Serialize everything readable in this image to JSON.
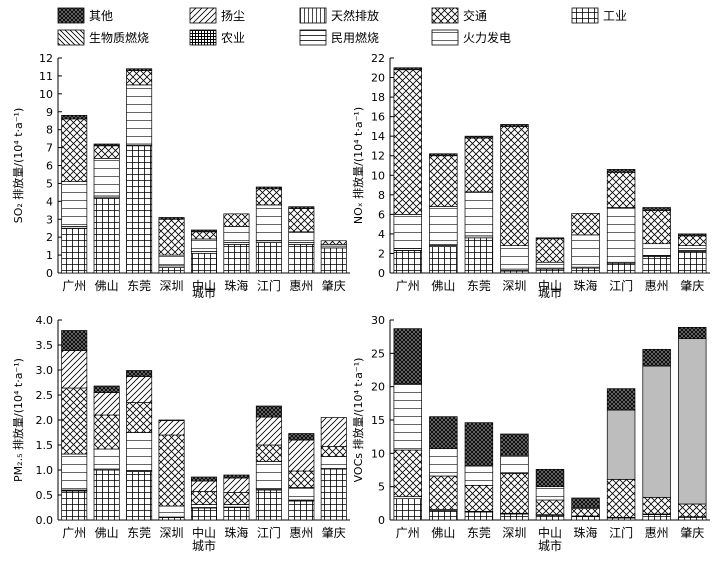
{
  "legend": [
    {
      "key": "qita",
      "label": "其他",
      "pattern": "p-qita"
    },
    {
      "key": "yangchen",
      "label": "扬尘",
      "pattern": "p-yangchen"
    },
    {
      "key": "tianran",
      "label": "天然排放",
      "pattern": "p-tianran"
    },
    {
      "key": "jiaotong",
      "label": "交通",
      "pattern": "p-jiaotong"
    },
    {
      "key": "gongye",
      "label": "工业",
      "pattern": "p-gongye"
    },
    {
      "key": "shengwu",
      "label": "生物质燃烧",
      "pattern": "p-shengwu"
    },
    {
      "key": "nongye",
      "label": "农业",
      "pattern": "p-nongye"
    },
    {
      "key": "minyong",
      "label": "民用燃烧",
      "pattern": "p-minyong"
    },
    {
      "key": "huoli",
      "label": "火力发电",
      "pattern": "p-huoli"
    }
  ],
  "chart_data": [
    {
      "type": "bar",
      "stacked": true,
      "title": "",
      "ylabel": "SO₂ 排放量/(10⁴ t·a⁻¹)",
      "xlabel": "城市",
      "ylim": [
        0,
        12
      ],
      "yticks": [
        0,
        1,
        2,
        3,
        4,
        5,
        6,
        7,
        8,
        9,
        10,
        11,
        12
      ],
      "categories": [
        "广州",
        "佛山",
        "东莞",
        "深圳",
        "中山",
        "珠海",
        "江门",
        "惠州",
        "肇庆"
      ],
      "series": [
        {
          "name": "工业",
          "values": [
            2.5,
            4.2,
            7.1,
            0.3,
            1.1,
            1.6,
            1.7,
            1.6,
            1.4
          ]
        },
        {
          "name": "民用燃烧",
          "values": [
            0.1,
            0.1,
            0.1,
            0.1,
            0.1,
            0.1,
            0.1,
            0.1,
            0.1
          ]
        },
        {
          "name": "火力发电",
          "values": [
            2.5,
            2.1,
            3.3,
            0.6,
            0.7,
            0.9,
            2.0,
            0.6,
            0.1
          ]
        },
        {
          "name": "交通",
          "values": [
            3.5,
            0.7,
            0.8,
            2.0,
            0.4,
            0.7,
            0.9,
            1.3,
            0.2
          ]
        },
        {
          "name": "其他",
          "values": [
            0.2,
            0.1,
            0.1,
            0.1,
            0.1,
            0.0,
            0.1,
            0.1,
            0.0
          ]
        }
      ]
    },
    {
      "type": "bar",
      "stacked": true,
      "title": "",
      "ylabel": "NOₓ 排放量/(10⁴ t·a⁻¹)",
      "xlabel": "城市",
      "ylim": [
        0,
        22
      ],
      "yticks": [
        0,
        2,
        4,
        6,
        8,
        10,
        12,
        14,
        16,
        18,
        20,
        22
      ],
      "categories": [
        "广州",
        "佛山",
        "东莞",
        "深圳",
        "中山",
        "珠海",
        "江门",
        "惠州",
        "肇庆"
      ],
      "series": [
        {
          "name": "工业",
          "values": [
            2.3,
            2.7,
            3.6,
            0.2,
            0.4,
            0.5,
            1.0,
            1.7,
            2.2
          ]
        },
        {
          "name": "民用燃烧",
          "values": [
            0.2,
            0.2,
            0.2,
            0.2,
            0.1,
            0.1,
            0.1,
            0.1,
            0.1
          ]
        },
        {
          "name": "火力发电",
          "values": [
            3.5,
            3.9,
            4.5,
            2.4,
            0.6,
            3.3,
            5.6,
            1.2,
            0.5
          ]
        },
        {
          "name": "交通",
          "values": [
            14.8,
            5.2,
            5.5,
            12.2,
            2.4,
            2.2,
            3.6,
            3.4,
            1.0
          ]
        },
        {
          "name": "其他",
          "values": [
            0.2,
            0.2,
            0.2,
            0.2,
            0.1,
            0.0,
            0.3,
            0.3,
            0.2
          ]
        }
      ]
    },
    {
      "type": "bar",
      "stacked": true,
      "title": "",
      "ylabel": "PM₂.₅ 排放量/(10⁴ t·a⁻¹)",
      "xlabel": "城市",
      "ylim": [
        0,
        4.0
      ],
      "yticks": [
        0,
        0.5,
        1.0,
        1.5,
        2.0,
        2.5,
        3.0,
        3.5,
        4.0
      ],
      "categories": [
        "广州",
        "佛山",
        "东莞",
        "深圳",
        "中山",
        "珠海",
        "江门",
        "惠州",
        "肇庆"
      ],
      "series": [
        {
          "name": "工业",
          "values": [
            0.58,
            1.0,
            0.97,
            0.05,
            0.24,
            0.25,
            0.6,
            0.38,
            1.02
          ]
        },
        {
          "name": "民用燃烧",
          "values": [
            0.02,
            0.02,
            0.02,
            0.01,
            0.01,
            0.01,
            0.02,
            0.02,
            0.01
          ]
        },
        {
          "name": "火力发电",
          "values": [
            0.72,
            0.4,
            0.76,
            0.22,
            0.06,
            0.05,
            0.55,
            0.25,
            0.24
          ]
        },
        {
          "name": "交通",
          "values": [
            1.32,
            0.68,
            0.6,
            1.42,
            0.26,
            0.24,
            0.33,
            0.33,
            0.2
          ]
        },
        {
          "name": "生物质燃烧",
          "values": [
            0.0,
            0.0,
            0.0,
            0.0,
            0.0,
            0.0,
            0.0,
            0.0,
            0.0
          ]
        },
        {
          "name": "扬尘",
          "values": [
            0.75,
            0.45,
            0.52,
            0.29,
            0.21,
            0.29,
            0.56,
            0.62,
            0.58
          ]
        },
        {
          "name": "其他",
          "values": [
            0.4,
            0.13,
            0.12,
            0.01,
            0.08,
            0.06,
            0.22,
            0.13,
            0.0
          ]
        }
      ]
    },
    {
      "type": "bar",
      "stacked": true,
      "title": "",
      "ylabel": "VOCs 排放量/(10⁴ t·a⁻¹)",
      "xlabel": "城市",
      "ylim": [
        0,
        30
      ],
      "yticks": [
        0,
        5,
        10,
        15,
        20,
        25,
        30
      ],
      "categories": [
        "广州",
        "佛山",
        "东莞",
        "深圳",
        "中山",
        "珠海",
        "江门",
        "惠州",
        "肇庆"
      ],
      "series": [
        {
          "name": "工业",
          "values": [
            3.2,
            1.3,
            1.2,
            0.9,
            0.7,
            0.5,
            0.3,
            0.8,
            0.4
          ]
        },
        {
          "name": "民用燃烧",
          "values": [
            0.3,
            0.3,
            0.1,
            0.1,
            0.1,
            0.1,
            0.1,
            0.1,
            0.1
          ]
        },
        {
          "name": "交通",
          "values": [
            7.0,
            5.0,
            3.9,
            6.0,
            2.2,
            1.1,
            5.7,
            2.5,
            1.9
          ]
        },
        {
          "name": "火力发电",
          "values": [
            9.9,
            4.1,
            2.9,
            2.7,
            2.0,
            0.0,
            0.0,
            0.0,
            0.0
          ]
        },
        {
          "name": "天然排放",
          "values": [
            0.0,
            0.0,
            0.0,
            0.0,
            0.0,
            0.2,
            10.4,
            19.7,
            24.8
          ]
        },
        {
          "name": "其他",
          "values": [
            8.3,
            4.8,
            6.5,
            3.2,
            2.6,
            1.4,
            3.2,
            2.5,
            1.7
          ]
        }
      ]
    }
  ]
}
